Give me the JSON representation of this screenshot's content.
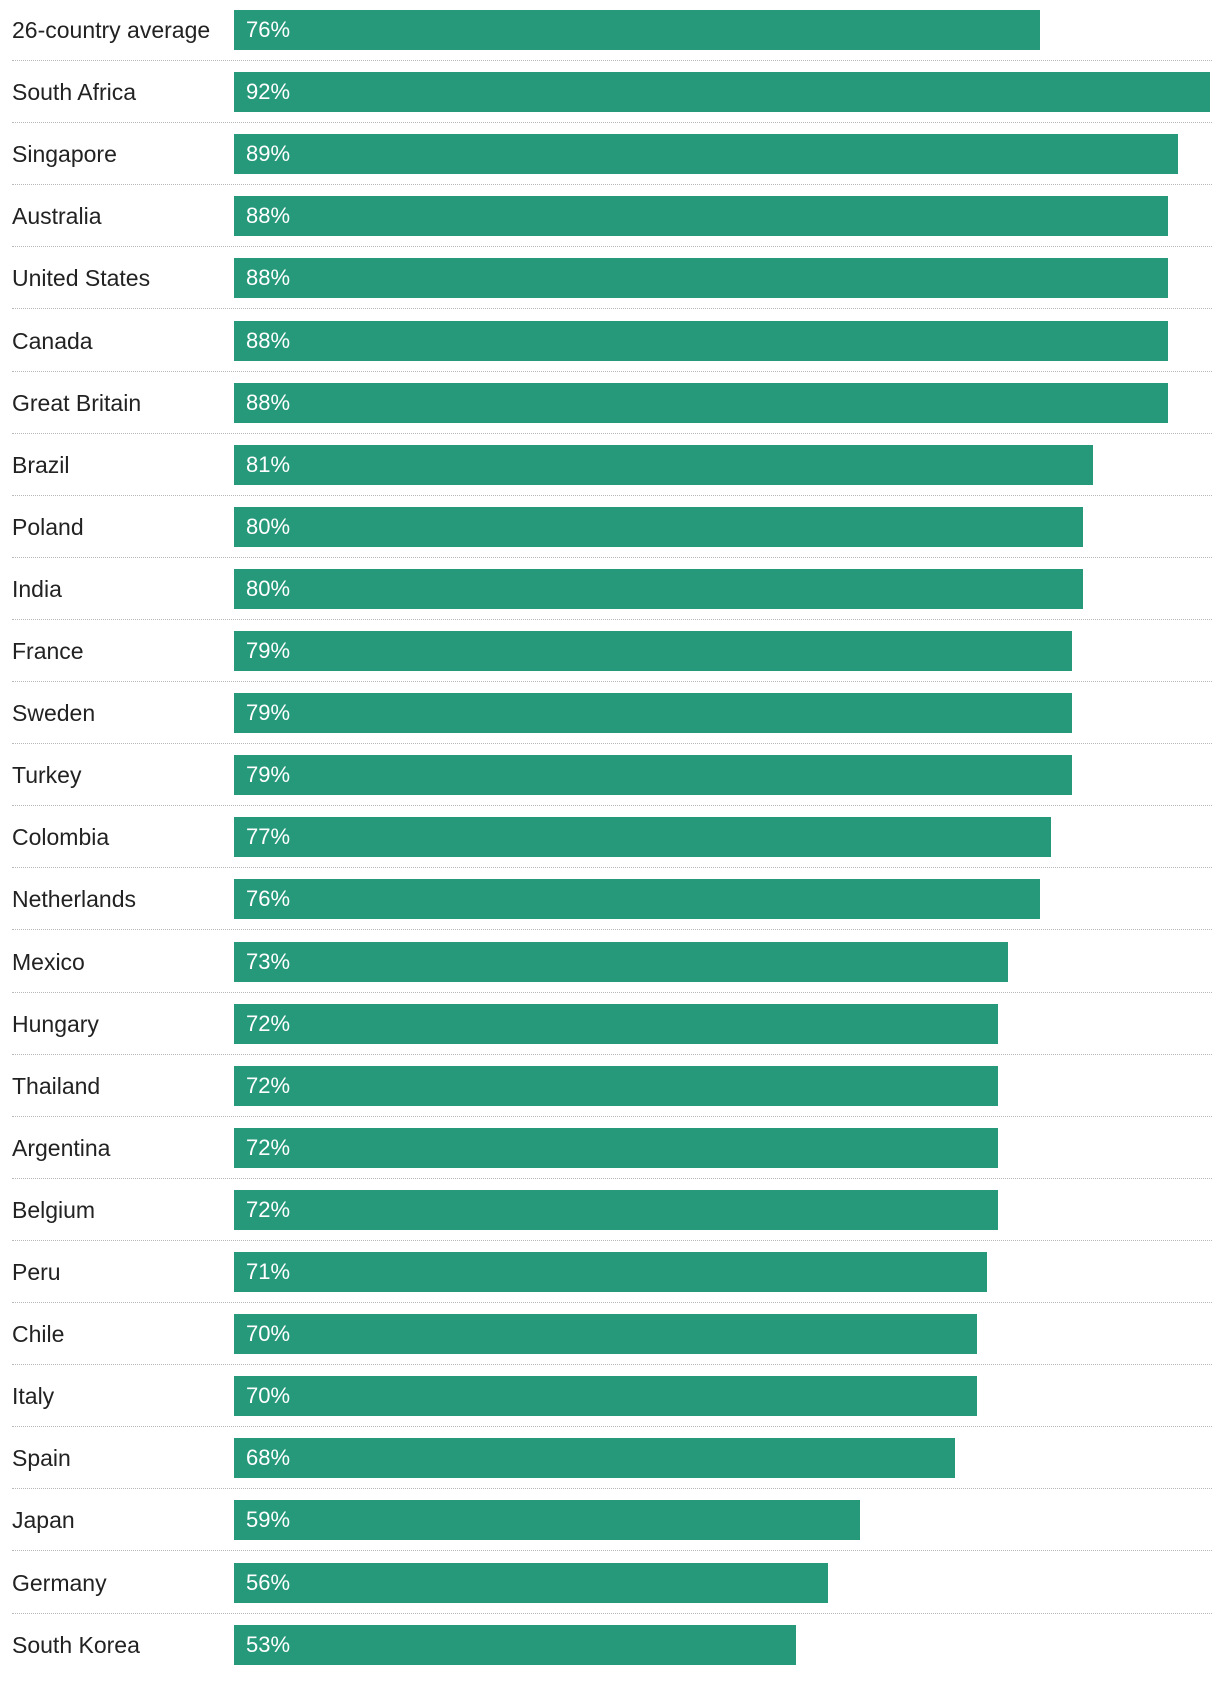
{
  "chart_data": {
    "type": "bar",
    "orientation": "horizontal",
    "bar_color": "#26997b",
    "xlim": [
      0,
      92
    ],
    "grid": false,
    "categories": [
      "26-country average",
      "South Africa",
      "Singapore",
      "Australia",
      "United States",
      "Canada",
      "Great Britain",
      "Brazil",
      "Poland",
      "India",
      "France",
      "Sweden",
      "Turkey",
      "Colombia",
      "Netherlands",
      "Mexico",
      "Hungary",
      "Thailand",
      "Argentina",
      "Belgium",
      "Peru",
      "Chile",
      "Italy",
      "Spain",
      "Japan",
      "Germany",
      "South Korea"
    ],
    "values": [
      76,
      92,
      89,
      88,
      88,
      88,
      88,
      81,
      80,
      80,
      79,
      79,
      79,
      77,
      76,
      73,
      72,
      72,
      72,
      72,
      71,
      70,
      70,
      68,
      59,
      56,
      53
    ],
    "value_labels": [
      "76%",
      "92%",
      "89%",
      "88%",
      "88%",
      "88%",
      "88%",
      "81%",
      "80%",
      "80%",
      "79%",
      "79%",
      "79%",
      "77%",
      "76%",
      "73%",
      "72%",
      "72%",
      "72%",
      "72%",
      "71%",
      "70%",
      "70%",
      "68%",
      "59%",
      "56%",
      "53%"
    ]
  }
}
